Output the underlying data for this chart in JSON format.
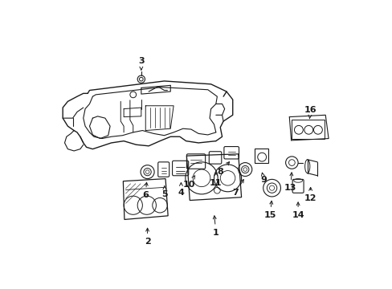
{
  "bg_color": "#ffffff",
  "line_color": "#1a1a1a",
  "fig_width": 4.89,
  "fig_height": 3.6,
  "dpi": 100,
  "label_fs": 8,
  "lw": 0.7
}
